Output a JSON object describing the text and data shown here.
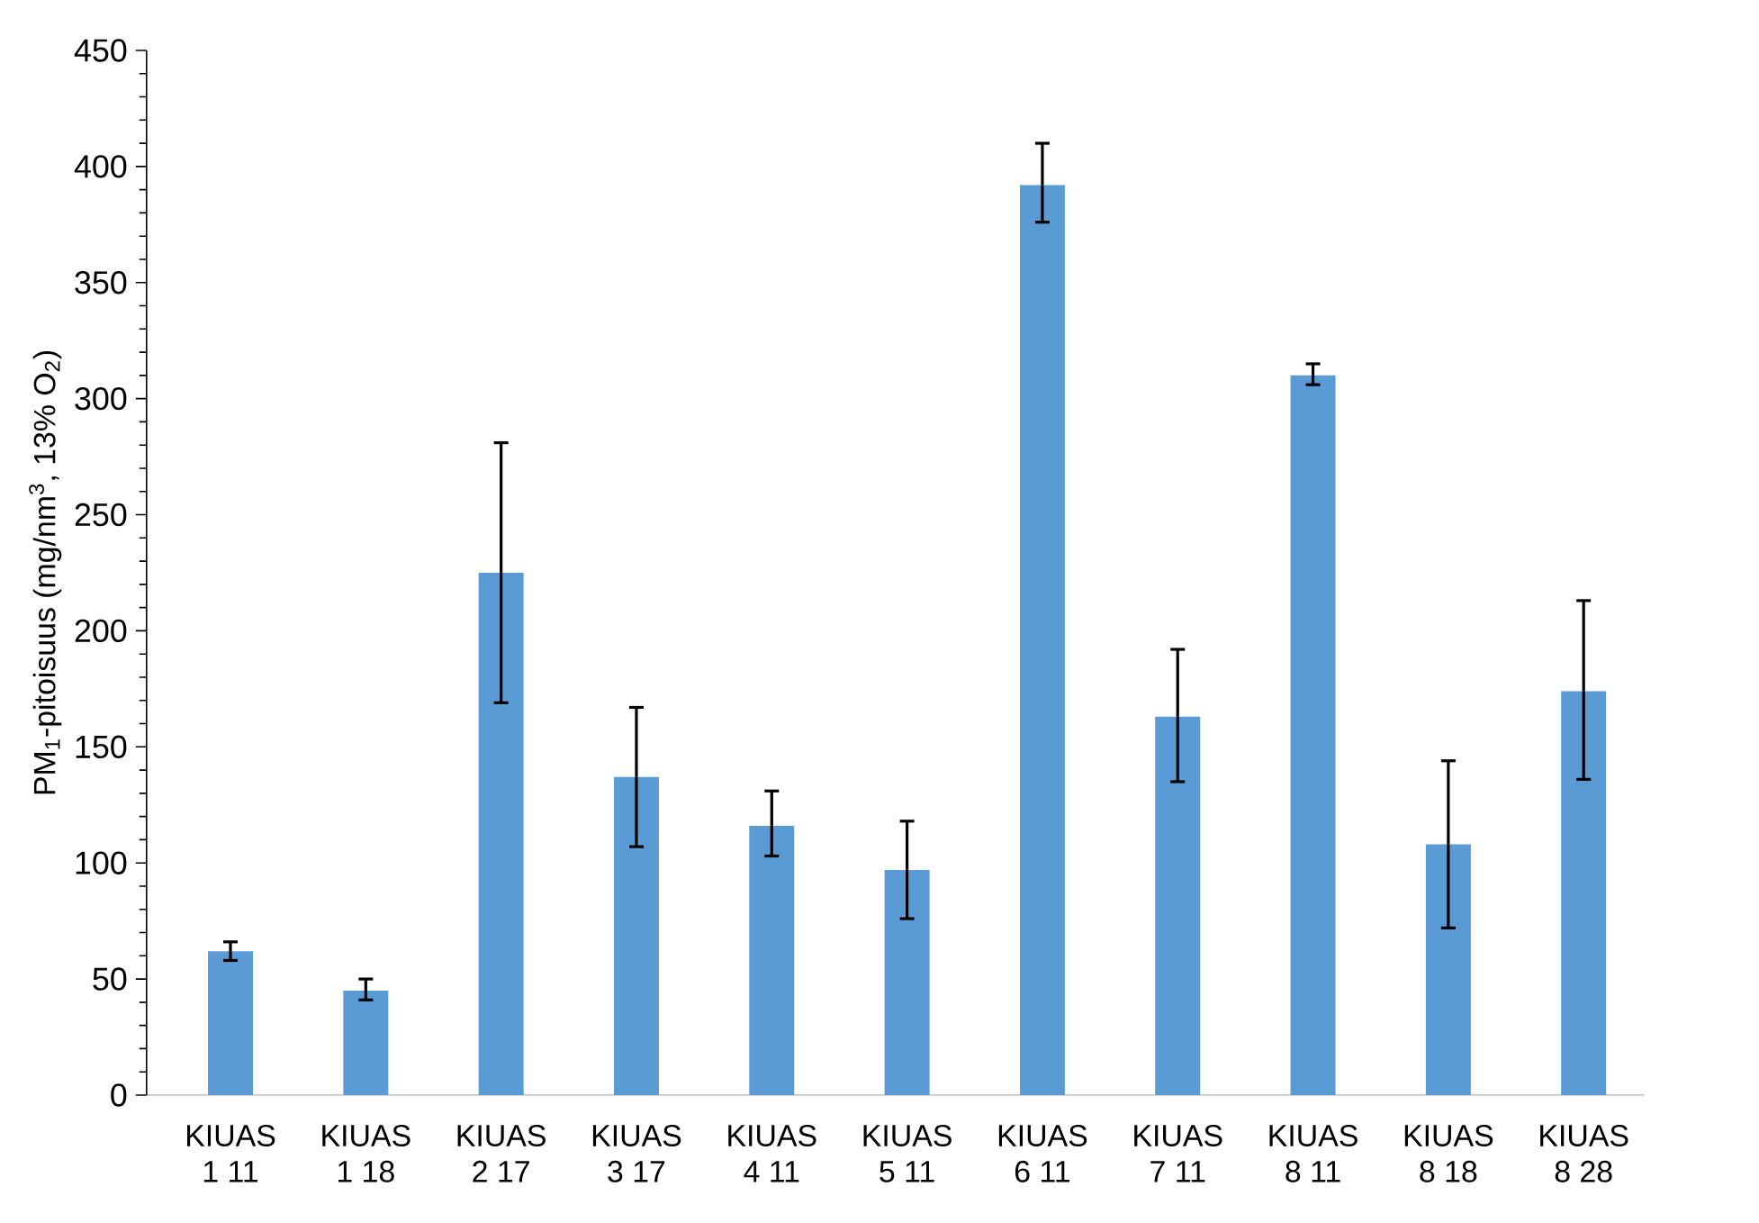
{
  "chart_data": {
    "type": "bar",
    "ylabel": "PM$_{1}$-pitoisuus (mg/nm$^{3}$, 13% O$_{2}$)",
    "categories": [
      "KIUAS 1 11",
      "KIUAS 1 18",
      "KIUAS 2 17",
      "KIUAS 3 17",
      "KIUAS 4 11",
      "KIUAS 5 11",
      "KIUAS 6 11",
      "KIUAS 7 11",
      "KIUAS 8 11",
      "KIUAS 8 18",
      "KIUAS 8 28"
    ],
    "values": [
      62,
      45,
      225,
      137,
      116,
      97,
      392,
      163,
      310,
      108,
      174
    ],
    "errors": [
      [
        58,
        66
      ],
      [
        41,
        50
      ],
      [
        169,
        281
      ],
      [
        107,
        167
      ],
      [
        103,
        131
      ],
      [
        76,
        118
      ],
      [
        376,
        410
      ],
      [
        135,
        192
      ],
      [
        306,
        315
      ],
      [
        72,
        144
      ],
      [
        136,
        213
      ]
    ],
    "color": "#5b9bd5",
    "ylim": [
      0,
      450
    ],
    "yticks": [
      0,
      50,
      100,
      150,
      200,
      250,
      300,
      350,
      400,
      450
    ]
  }
}
